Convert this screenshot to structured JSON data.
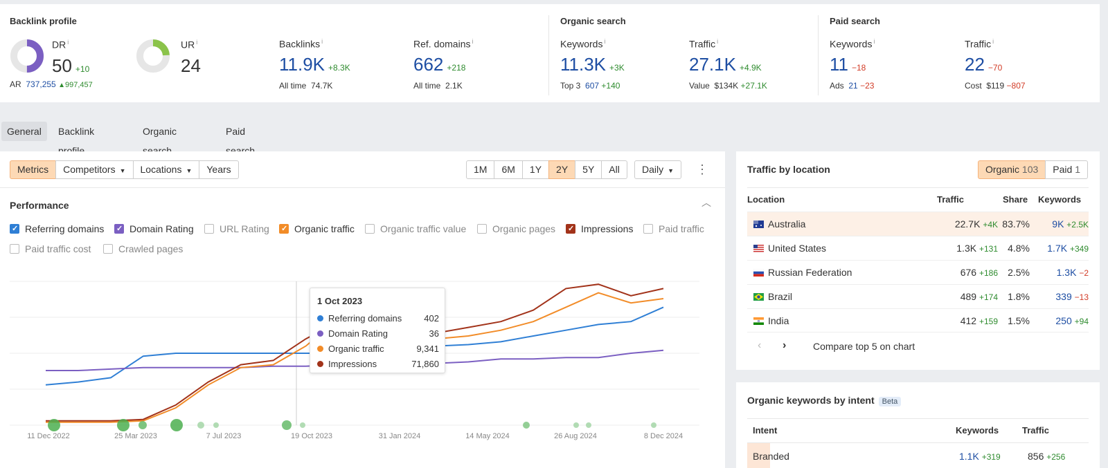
{
  "overview": {
    "backlink_profile": {
      "title": "Backlink profile",
      "dr": {
        "label": "DR",
        "value": "50",
        "delta": "+10",
        "ring_fraction": 0.5
      },
      "ar": {
        "label": "AR",
        "value": "737,255",
        "delta": "997,457"
      },
      "ur": {
        "label": "UR",
        "value": "24",
        "ring_fraction": 0.24
      },
      "backlinks": {
        "label": "Backlinks",
        "value": "11.9K",
        "delta": "+8.3K",
        "sub_label": "All time",
        "sub_value": "74.7K"
      },
      "ref_domains": {
        "label": "Ref. domains",
        "value": "662",
        "delta": "+218",
        "sub_label": "All time",
        "sub_value": "2.1K"
      }
    },
    "organic_search": {
      "title": "Organic search",
      "keywords": {
        "label": "Keywords",
        "value": "11.3K",
        "delta": "+3K",
        "sub_label": "Top 3",
        "sub_value": "607",
        "sub_delta": "+140"
      },
      "traffic": {
        "label": "Traffic",
        "value": "27.1K",
        "delta": "+4.9K",
        "sub_label": "Value",
        "sub_value": "$134K",
        "sub_delta": "+27.1K"
      }
    },
    "paid_search": {
      "title": "Paid search",
      "keywords": {
        "label": "Keywords",
        "value": "11",
        "delta": "−18",
        "sub_label": "Ads",
        "sub_value": "21",
        "sub_delta": "−23"
      },
      "traffic": {
        "label": "Traffic",
        "value": "22",
        "delta": "−70",
        "sub_label": "Cost",
        "sub_value": "$119",
        "sub_delta": "−807"
      }
    },
    "info_mark": "i"
  },
  "tabs": [
    "General",
    "Backlink profile",
    "Organic search",
    "Paid search"
  ],
  "toolbar": {
    "view_buttons": [
      "Metrics",
      "Competitors",
      "Locations",
      "Years"
    ],
    "range_buttons": [
      "1M",
      "6M",
      "1Y",
      "2Y",
      "5Y",
      "All"
    ],
    "granularity": "Daily",
    "more_icon": "more-vertical-icon"
  },
  "performance": {
    "title": "Performance",
    "metrics": [
      {
        "label": "Referring domains",
        "checked": true,
        "color": "#2f7fd5"
      },
      {
        "label": "Domain Rating",
        "checked": true,
        "color": "#7b5fc2"
      },
      {
        "label": "URL Rating",
        "checked": false,
        "color": ""
      },
      {
        "label": "Organic traffic",
        "checked": true,
        "color": "#f28c28"
      },
      {
        "label": "Organic traffic value",
        "checked": false,
        "color": ""
      },
      {
        "label": "Organic pages",
        "checked": false,
        "color": ""
      },
      {
        "label": "Impressions",
        "checked": true,
        "color": "#a2331a"
      },
      {
        "label": "Paid traffic",
        "checked": false,
        "color": ""
      },
      {
        "label": "Paid traffic cost",
        "checked": false,
        "color": ""
      },
      {
        "label": "Crawled pages",
        "checked": false,
        "color": ""
      }
    ]
  },
  "chart_data": {
    "type": "line",
    "x_ticks": [
      "11 Dec 2022",
      "25 Mar 2023",
      "7 Jul 2023",
      "19 Oct 2023",
      "31 Jan 2024",
      "14 May 2024",
      "26 Aug 2024",
      "8 Dec 2024"
    ],
    "grid": true,
    "series": [
      {
        "name": "Referring domains",
        "color": "#2f7fd5",
        "values": [
          0.28,
          0.3,
          0.33,
          0.48,
          0.5,
          0.5,
          0.5,
          0.5,
          0.5,
          0.5,
          0.46,
          0.52,
          0.55,
          0.56,
          0.58,
          0.62,
          0.66,
          0.7,
          0.72,
          0.82
        ]
      },
      {
        "name": "Domain Rating",
        "color": "#7b5fc2",
        "values": [
          0.38,
          0.38,
          0.39,
          0.4,
          0.4,
          0.4,
          0.4,
          0.41,
          0.41,
          0.42,
          0.42,
          0.42,
          0.43,
          0.44,
          0.46,
          0.46,
          0.47,
          0.47,
          0.5,
          0.52
        ]
      },
      {
        "name": "Organic traffic",
        "color": "#f28c28",
        "values": [
          0.02,
          0.02,
          0.02,
          0.03,
          0.12,
          0.28,
          0.4,
          0.42,
          0.55,
          0.74,
          0.62,
          0.7,
          0.6,
          0.62,
          0.66,
          0.72,
          0.82,
          0.92,
          0.85,
          0.88
        ]
      },
      {
        "name": "Impressions",
        "color": "#a2331a",
        "values": [
          0.03,
          0.03,
          0.03,
          0.04,
          0.14,
          0.3,
          0.42,
          0.45,
          0.6,
          0.72,
          0.66,
          0.74,
          0.64,
          0.68,
          0.72,
          0.8,
          0.95,
          0.98,
          0.9,
          0.95
        ]
      }
    ],
    "tooltip": {
      "date": "1 Oct 2023",
      "rows": [
        {
          "name": "Referring domains",
          "value": "402",
          "color": "#2f7fd5"
        },
        {
          "name": "Domain Rating",
          "value": "36",
          "color": "#7b5fc2"
        },
        {
          "name": "Organic traffic",
          "value": "9,341",
          "color": "#f28c28"
        },
        {
          "name": "Impressions",
          "value": "71,860",
          "color": "#a2331a"
        }
      ]
    }
  },
  "traffic_by_location": {
    "title": "Traffic by location",
    "toggle": [
      {
        "label": "Organic",
        "count": "103",
        "active": true
      },
      {
        "label": "Paid",
        "count": "1",
        "active": false
      }
    ],
    "columns": [
      "Location",
      "Traffic",
      "Share",
      "Keywords"
    ],
    "rows": [
      {
        "country": "Australia",
        "traffic": "22.7K",
        "traffic_delta": "+4K",
        "share": "83.7%",
        "keywords": "9K",
        "keywords_delta": "+2.5K",
        "kw_delta_sign": "pos"
      },
      {
        "country": "United States",
        "traffic": "1.3K",
        "traffic_delta": "+131",
        "share": "4.8%",
        "keywords": "1.7K",
        "keywords_delta": "+349",
        "kw_delta_sign": "pos"
      },
      {
        "country": "Russian Federation",
        "traffic": "676",
        "traffic_delta": "+186",
        "share": "2.5%",
        "keywords": "1.3K",
        "keywords_delta": "−2",
        "kw_delta_sign": "neg"
      },
      {
        "country": "Brazil",
        "traffic": "489",
        "traffic_delta": "+174",
        "share": "1.8%",
        "keywords": "339",
        "keywords_delta": "−13",
        "kw_delta_sign": "neg"
      },
      {
        "country": "India",
        "traffic": "412",
        "traffic_delta": "+159",
        "share": "1.5%",
        "keywords": "250",
        "keywords_delta": "+94",
        "kw_delta_sign": "pos"
      }
    ],
    "compare_label": "Compare top 5 on chart"
  },
  "intent": {
    "title": "Organic keywords by intent",
    "badge": "Beta",
    "columns": [
      "Intent",
      "Keywords",
      "Traffic"
    ],
    "rows": [
      {
        "intent": "Branded",
        "keywords": "1.1K",
        "keywords_delta": "+319",
        "traffic": "856",
        "traffic_delta": "+256"
      }
    ]
  }
}
